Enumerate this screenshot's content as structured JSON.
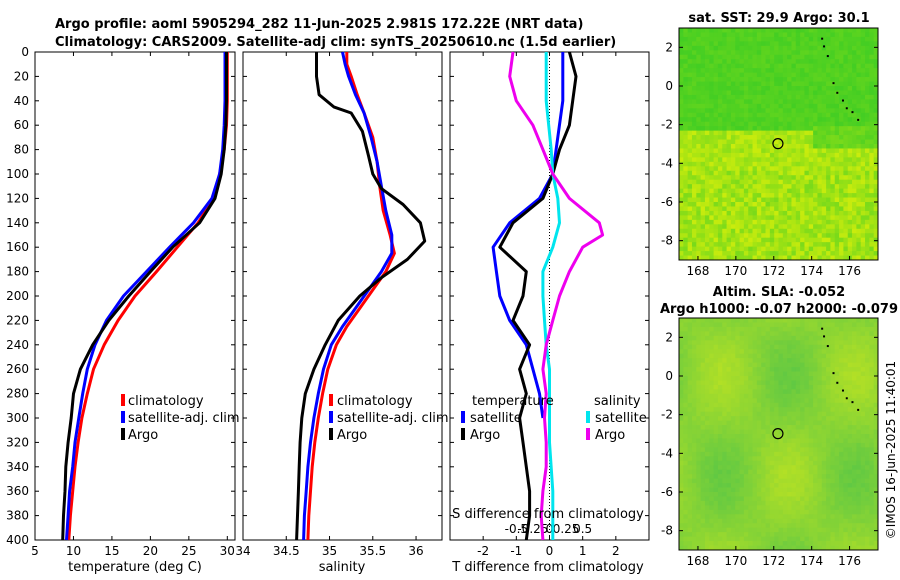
{
  "header": {
    "line1": "Argo profile: aoml 5905294_282 11-Jun-2025 2.981S 172.22E (NRT data)",
    "line2": "Climatology: CARS2009. Satellite-adj clim: synTS_20250610.nc (1.5d earlier)"
  },
  "credit": "©IMOS 16-Jun-2025 11:40:01",
  "colors": {
    "climatology": "#ff0000",
    "satellite": "#0000ff",
    "argo": "#000000",
    "sal_satellite": "#00e5ee",
    "sal_argo": "#ee00ee"
  },
  "chart_data": [
    {
      "type": "line",
      "id": "temperature",
      "xlabel": "temperature (deg C)",
      "ylabel": "",
      "xlim": [
        5,
        31
      ],
      "ylim": [
        400,
        0
      ],
      "xticks": [
        5,
        10,
        15,
        20,
        25,
        30
      ],
      "xtick_labels": [
        "5",
        "10",
        "15",
        "20",
        "25",
        "30"
      ],
      "yticks": [
        0,
        20,
        40,
        60,
        80,
        100,
        120,
        140,
        160,
        180,
        200,
        220,
        240,
        260,
        280,
        300,
        320,
        340,
        360,
        380,
        400
      ],
      "ytick_labels": [
        "0",
        "20",
        "40",
        "60",
        "80",
        "100",
        "120",
        "140",
        "160",
        "180",
        "200",
        "220",
        "240",
        "260",
        "280",
        "300",
        "320",
        "340",
        "360",
        "380",
        "400"
      ],
      "legend": [
        "climatology",
        "satellite-adj. clim",
        "Argo"
      ],
      "series": [
        {
          "name": "climatology",
          "color": "#ff0000",
          "points": [
            [
              30,
              0
            ],
            [
              30,
              40
            ],
            [
              29.9,
              60
            ],
            [
              29.6,
              80
            ],
            [
              29,
              100
            ],
            [
              28.2,
              120
            ],
            [
              26.2,
              140
            ],
            [
              23.5,
              160
            ],
            [
              20.8,
              180
            ],
            [
              18,
              200
            ],
            [
              15.8,
              220
            ],
            [
              14,
              240
            ],
            [
              12.6,
              260
            ],
            [
              11.8,
              280
            ],
            [
              11.1,
              300
            ],
            [
              10.6,
              320
            ],
            [
              10.2,
              340
            ],
            [
              9.9,
              360
            ],
            [
              9.6,
              380
            ],
            [
              9.4,
              400
            ]
          ]
        },
        {
          "name": "satellite-adj. clim",
          "color": "#0000ff",
          "points": [
            [
              29.7,
              0
            ],
            [
              29.7,
              40
            ],
            [
              29.6,
              60
            ],
            [
              29.4,
              80
            ],
            [
              29,
              100
            ],
            [
              28,
              120
            ],
            [
              25.6,
              140
            ],
            [
              22.5,
              160
            ],
            [
              19.5,
              180
            ],
            [
              16.5,
              200
            ],
            [
              14.3,
              220
            ],
            [
              12.8,
              240
            ],
            [
              11.8,
              260
            ],
            [
              11.2,
              280
            ],
            [
              10.7,
              300
            ],
            [
              10.2,
              320
            ],
            [
              9.9,
              340
            ],
            [
              9.5,
              360
            ],
            [
              9.3,
              380
            ],
            [
              9.1,
              400
            ]
          ]
        },
        {
          "name": "Argo",
          "color": "#000000",
          "points": [
            [
              29.9,
              0
            ],
            [
              29.9,
              40
            ],
            [
              29.8,
              60
            ],
            [
              29.6,
              80
            ],
            [
              29.2,
              100
            ],
            [
              28.4,
              120
            ],
            [
              26.4,
              140
            ],
            [
              22.9,
              160
            ],
            [
              20,
              180
            ],
            [
              17.2,
              200
            ],
            [
              14.6,
              220
            ],
            [
              12.5,
              240
            ],
            [
              10.9,
              260
            ],
            [
              10,
              280
            ],
            [
              9.7,
              300
            ],
            [
              9.3,
              320
            ],
            [
              9,
              340
            ],
            [
              8.9,
              360
            ],
            [
              8.7,
              380
            ],
            [
              8.6,
              400
            ]
          ]
        }
      ]
    },
    {
      "type": "line",
      "id": "salinity",
      "xlabel": "salinity",
      "ylabel": "",
      "xlim": [
        34,
        36.3
      ],
      "ylim": [
        400,
        0
      ],
      "xticks": [
        34,
        34.5,
        35,
        35.5,
        36
      ],
      "xtick_labels": [
        "34",
        "34.5",
        "35",
        "35.5",
        "36"
      ],
      "legend": [
        "climatology",
        "satellite-adj. clim",
        "Argo"
      ],
      "series": [
        {
          "name": "climatology",
          "color": "#ff0000",
          "points": [
            [
              35.2,
              0
            ],
            [
              35.2,
              10
            ],
            [
              35.25,
              20
            ],
            [
              35.32,
              35
            ],
            [
              35.4,
              50
            ],
            [
              35.5,
              70
            ],
            [
              35.55,
              90
            ],
            [
              35.58,
              110
            ],
            [
              35.62,
              130
            ],
            [
              35.7,
              150
            ],
            [
              35.75,
              165
            ],
            [
              35.65,
              180
            ],
            [
              35.5,
              195
            ],
            [
              35.35,
              210
            ],
            [
              35.2,
              225
            ],
            [
              35.08,
              240
            ],
            [
              34.98,
              260
            ],
            [
              34.92,
              280
            ],
            [
              34.87,
              300
            ],
            [
              34.83,
              320
            ],
            [
              34.8,
              340
            ],
            [
              34.78,
              360
            ],
            [
              34.76,
              380
            ],
            [
              34.75,
              400
            ]
          ]
        },
        {
          "name": "satellite-adj. clim",
          "color": "#0000ff",
          "points": [
            [
              35.15,
              0
            ],
            [
              35.18,
              10
            ],
            [
              35.22,
              20
            ],
            [
              35.3,
              35
            ],
            [
              35.4,
              50
            ],
            [
              35.48,
              70
            ],
            [
              35.55,
              90
            ],
            [
              35.6,
              110
            ],
            [
              35.65,
              130
            ],
            [
              35.72,
              150
            ],
            [
              35.72,
              165
            ],
            [
              35.6,
              180
            ],
            [
              35.45,
              195
            ],
            [
              35.3,
              210
            ],
            [
              35.15,
              225
            ],
            [
              35.02,
              240
            ],
            [
              34.93,
              260
            ],
            [
              34.87,
              280
            ],
            [
              34.82,
              300
            ],
            [
              34.78,
              320
            ],
            [
              34.75,
              340
            ],
            [
              34.73,
              360
            ],
            [
              34.71,
              380
            ],
            [
              34.7,
              400
            ]
          ]
        },
        {
          "name": "Argo",
          "color": "#000000",
          "points": [
            [
              34.85,
              0
            ],
            [
              34.85,
              20
            ],
            [
              34.88,
              35
            ],
            [
              35.05,
              45
            ],
            [
              35.25,
              50
            ],
            [
              35.38,
              65
            ],
            [
              35.45,
              85
            ],
            [
              35.5,
              100
            ],
            [
              35.6,
              112
            ],
            [
              35.85,
              125
            ],
            [
              36.05,
              140
            ],
            [
              36.1,
              155
            ],
            [
              35.9,
              170
            ],
            [
              35.6,
              185
            ],
            [
              35.35,
              200
            ],
            [
              35.1,
              220
            ],
            [
              34.95,
              240
            ],
            [
              34.82,
              260
            ],
            [
              34.72,
              280
            ],
            [
              34.68,
              300
            ],
            [
              34.66,
              320
            ],
            [
              34.65,
              340
            ],
            [
              34.64,
              360
            ],
            [
              34.63,
              380
            ],
            [
              34.62,
              400
            ]
          ]
        }
      ]
    },
    {
      "type": "line",
      "id": "difference",
      "xlabel": "T difference from climatology",
      "xlabel_top": "S difference from climatology",
      "xlim": [
        -3,
        3
      ],
      "ylim": [
        400,
        0
      ],
      "xticks": [
        -2,
        -1,
        0,
        1,
        2
      ],
      "xtick_labels": [
        "-2",
        "-1",
        "0",
        "1",
        "2"
      ],
      "s_xticks": [
        -1,
        -0.5,
        0,
        0.5,
        1
      ],
      "s_xtick_labels": [
        "-0.5",
        "-0.25",
        "0",
        "0.25",
        "0.5"
      ],
      "legend_title_t": "temperature",
      "legend_title_s": "salinity",
      "legend": [
        "satellite",
        "Argo",
        "satellite",
        "Argo"
      ],
      "series": [
        {
          "name": "T satellite",
          "color": "#0000ff",
          "points": [
            [
              0.4,
              0
            ],
            [
              0.4,
              40
            ],
            [
              0.2,
              80
            ],
            [
              0.1,
              100
            ],
            [
              -0.3,
              120
            ],
            [
              -1.2,
              140
            ],
            [
              -1.7,
              160
            ],
            [
              -1.6,
              180
            ],
            [
              -1.5,
              200
            ],
            [
              -1.2,
              220
            ],
            [
              -0.7,
              240
            ],
            [
              -0.5,
              260
            ],
            [
              -0.3,
              280
            ],
            [
              -0.2,
              300
            ]
          ]
        },
        {
          "name": "T Argo",
          "color": "#000000",
          "points": [
            [
              0.6,
              0
            ],
            [
              0.8,
              20
            ],
            [
              0.7,
              40
            ],
            [
              0.6,
              60
            ],
            [
              0.3,
              80
            ],
            [
              0.1,
              100
            ],
            [
              -0.2,
              120
            ],
            [
              -1.1,
              140
            ],
            [
              -1.5,
              160
            ],
            [
              -0.7,
              180
            ],
            [
              -0.8,
              200
            ],
            [
              -1.1,
              220
            ],
            [
              -0.6,
              240
            ],
            [
              -0.9,
              260
            ],
            [
              -0.7,
              280
            ],
            [
              -0.9,
              300
            ],
            [
              -0.8,
              320
            ],
            [
              -0.7,
              340
            ],
            [
              -0.6,
              360
            ],
            [
              -0.6,
              380
            ],
            [
              -0.7,
              400
            ]
          ]
        },
        {
          "name": "S satellite",
          "color": "#00e5ee",
          "points": [
            [
              -0.1,
              0
            ],
            [
              -0.1,
              40
            ],
            [
              0.05,
              80
            ],
            [
              0.1,
              100
            ],
            [
              0.25,
              120
            ],
            [
              0.3,
              140
            ],
            [
              0.1,
              160
            ],
            [
              -0.2,
              180
            ],
            [
              -0.2,
              200
            ],
            [
              -0.15,
              220
            ],
            [
              -0.1,
              240
            ],
            [
              0,
              260
            ],
            [
              0,
              280
            ],
            [
              0,
              320
            ],
            [
              0.1,
              360
            ],
            [
              0.1,
              400
            ]
          ]
        },
        {
          "name": "S Argo",
          "color": "#ee00ee",
          "points": [
            [
              -1.1,
              0
            ],
            [
              -1.2,
              20
            ],
            [
              -1.0,
              40
            ],
            [
              -0.5,
              60
            ],
            [
              -0.2,
              80
            ],
            [
              0.1,
              100
            ],
            [
              0.6,
              120
            ],
            [
              1.5,
              140
            ],
            [
              1.6,
              150
            ],
            [
              1.0,
              160
            ],
            [
              0.6,
              180
            ],
            [
              0.3,
              200
            ],
            [
              0.1,
              220
            ],
            [
              -0.1,
              240
            ],
            [
              -0.2,
              260
            ],
            [
              -0.1,
              280
            ],
            [
              -0.15,
              300
            ],
            [
              -0.1,
              320
            ],
            [
              -0.1,
              340
            ],
            [
              -0.2,
              360
            ],
            [
              -0.25,
              380
            ],
            [
              -0.2,
              400
            ]
          ]
        }
      ]
    },
    {
      "type": "heatmap",
      "id": "sst-map",
      "title": "sat. SST: 29.9 Argo: 30.1",
      "xlim": [
        167,
        177.5
      ],
      "ylim": [
        -9,
        3
      ],
      "xticks": [
        168,
        170,
        172,
        174,
        176
      ],
      "xtick_labels": [
        "168",
        "170",
        "172",
        "174",
        "176"
      ],
      "yticks": [
        2,
        0,
        -2,
        -4,
        -6,
        -8
      ],
      "ytick_labels": [
        "2",
        "0",
        "-2",
        "-4",
        "-6",
        "-8"
      ],
      "marker": [
        172.22,
        -2.981
      ]
    },
    {
      "type": "heatmap",
      "id": "sla-map",
      "title": "Altim. SLA: -0.052",
      "subtitle": "Argo h1000: -0.07 h2000: -0.079",
      "xlim": [
        167,
        177.5
      ],
      "ylim": [
        -9,
        3
      ],
      "xticks": [
        168,
        170,
        172,
        174,
        176
      ],
      "xtick_labels": [
        "168",
        "170",
        "172",
        "174",
        "176"
      ],
      "yticks": [
        2,
        0,
        -2,
        -4,
        -6,
        -8
      ],
      "ytick_labels": [
        "2",
        "0",
        "-2",
        "-4",
        "-6",
        "-8"
      ],
      "marker": [
        172.22,
        -2.981
      ]
    }
  ]
}
